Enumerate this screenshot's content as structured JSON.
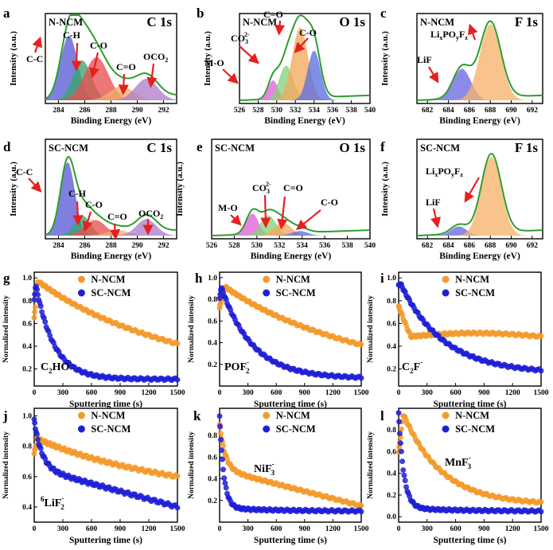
{
  "figure": {
    "colors": {
      "fit": "#2e9d2e",
      "arrow": "#e62020",
      "orange": "#f39a2c",
      "blue": "#1f1fd6",
      "CC": "#5b5bd6",
      "CH": "#3aa56d",
      "CO": "#e8504f",
      "CdO": "#f0ad6b",
      "OCO2": "#b07fc9",
      "MO": "#e35fd7",
      "CO3": "#8bd17c",
      "Odb": "#f3a95c",
      "Oco": "#5e6fe0",
      "LiF": "#6a6ae0",
      "LiPOF": "#f6b46c"
    }
  },
  "chart_data": [
    {
      "panel": "a",
      "type": "xps",
      "sample": "N-NCM",
      "element": "C 1s",
      "xlabel": "Binding Energy (eV)",
      "ylabel": "Intensity (a.u.)",
      "xlim": [
        283,
        293
      ],
      "xticks": [
        284,
        286,
        288,
        290,
        292
      ],
      "peaks": [
        {
          "name": "C-C",
          "center": 284.8,
          "height": 0.78,
          "width": 0.65,
          "color": "CC"
        },
        {
          "name": "C-H",
          "center": 285.8,
          "height": 0.48,
          "width": 0.7,
          "color": "CH"
        },
        {
          "name": "C-O",
          "center": 286.9,
          "height": 0.52,
          "width": 0.9,
          "color": "CO"
        },
        {
          "name": "C=O",
          "center": 288.8,
          "height": 0.17,
          "width": 0.9,
          "color": "CdO"
        },
        {
          "name": "OCO2",
          "center": 290.7,
          "height": 0.26,
          "width": 0.85,
          "color": "OCO2"
        }
      ],
      "annotations": [
        {
          "text": "C-C",
          "sub": ""
        },
        {
          "text": "C-H",
          "sub": ""
        },
        {
          "text": "C-O",
          "sub": ""
        },
        {
          "text": "C=O",
          "sub": ""
        },
        {
          "text": "OCO",
          "sub": "2"
        }
      ]
    },
    {
      "panel": "b",
      "type": "xps",
      "sample": "N-NCM",
      "element": "O 1s",
      "xlabel": "Binding Energy (eV)",
      "ylabel": "Intensity (a.u.)",
      "xlim": [
        526,
        540
      ],
      "xticks": [
        526,
        528,
        530,
        532,
        534,
        536,
        538,
        540
      ],
      "peaks": [
        {
          "name": "M-O",
          "center": 529.6,
          "height": 0.24,
          "width": 0.55,
          "color": "MO"
        },
        {
          "name": "CO3 2-",
          "center": 531.0,
          "height": 0.42,
          "width": 0.75,
          "color": "CO3"
        },
        {
          "name": "C=O",
          "center": 532.5,
          "height": 0.88,
          "width": 0.85,
          "color": "Odb"
        },
        {
          "name": "C-O",
          "center": 534.0,
          "height": 0.6,
          "width": 0.7,
          "color": "Oco"
        }
      ],
      "annotations": [
        {
          "text": "M-O",
          "sub": ""
        },
        {
          "text": "CO",
          "sub": "3",
          "sup": "2-"
        },
        {
          "text": "C=O",
          "sub": ""
        },
        {
          "text": "C-O",
          "sub": ""
        }
      ]
    },
    {
      "panel": "c",
      "type": "xps",
      "sample": "N-NCM",
      "element": "F 1s",
      "xlabel": "Binding Energy (eV)",
      "ylabel": "Intensity (a.u.)",
      "xlim": [
        681,
        693
      ],
      "xticks": [
        682,
        684,
        686,
        688,
        690,
        692
      ],
      "peaks": [
        {
          "name": "LiF",
          "center": 685.3,
          "height": 0.38,
          "width": 0.85,
          "color": "LiF"
        },
        {
          "name": "LixPOyFz",
          "center": 688.0,
          "height": 0.92,
          "width": 1.0,
          "color": "LiPOF"
        }
      ],
      "annotations": [
        {
          "text": "LiF",
          "sub": ""
        },
        {
          "text": "Li",
          "sub": "x",
          "mid": "PO",
          "sub2": "y",
          "tail": "F",
          "sub3": "z"
        }
      ]
    },
    {
      "panel": "d",
      "type": "xps",
      "sample": "SC-NCM",
      "element": "C 1s",
      "xlabel": "Binding Energy (eV)",
      "ylabel": "Intensity (a.u.)",
      "xlim": [
        283,
        293
      ],
      "xticks": [
        284,
        286,
        288,
        290,
        292
      ],
      "peaks": [
        {
          "name": "C-C",
          "center": 284.7,
          "height": 0.8,
          "width": 0.55,
          "color": "CC"
        },
        {
          "name": "C-H",
          "center": 285.8,
          "height": 0.22,
          "width": 0.6,
          "color": "CH"
        },
        {
          "name": "C-O",
          "center": 286.8,
          "height": 0.17,
          "width": 0.8,
          "color": "CO"
        },
        {
          "name": "C=O",
          "center": 288.5,
          "height": 0.06,
          "width": 0.8,
          "color": "CdO"
        },
        {
          "name": "OCO2",
          "center": 290.7,
          "height": 0.18,
          "width": 0.75,
          "color": "OCO2"
        }
      ],
      "annotations": [
        {
          "text": "C-C",
          "sub": ""
        },
        {
          "text": "C-H",
          "sub": ""
        },
        {
          "text": "C-O",
          "sub": ""
        },
        {
          "text": "C=O",
          "sub": ""
        },
        {
          "text": "OCO",
          "sub": "2"
        }
      ]
    },
    {
      "panel": "e",
      "type": "xps",
      "sample": "SC-NCM",
      "element": "O 1s",
      "xlabel": "Binding Energy (eV)",
      "ylabel": "Intensity (a.u.)",
      "xlim": [
        526,
        540
      ],
      "xticks": [
        526,
        528,
        530,
        532,
        534,
        536,
        538,
        540
      ],
      "peaks": [
        {
          "name": "M-O",
          "center": 529.6,
          "height": 0.24,
          "width": 0.55,
          "color": "MO"
        },
        {
          "name": "CO3 2-",
          "center": 531.0,
          "height": 0.22,
          "width": 0.7,
          "color": "CO3"
        },
        {
          "name": "C=O",
          "center": 532.3,
          "height": 0.14,
          "width": 0.75,
          "color": "Odb"
        },
        {
          "name": "C-O",
          "center": 533.8,
          "height": 0.05,
          "width": 0.7,
          "color": "Oco"
        }
      ],
      "annotations": [
        {
          "text": "M-O",
          "sub": ""
        },
        {
          "text": "CO",
          "sub": "3",
          "sup": "2-"
        },
        {
          "text": "C=O",
          "sub": ""
        },
        {
          "text": "C-O",
          "sub": ""
        }
      ]
    },
    {
      "panel": "f",
      "type": "xps",
      "sample": "SC-NCM",
      "element": "F 1s",
      "xlabel": "Binding Energy (eV)",
      "ylabel": "Intensity (a.u.)",
      "xlim": [
        681,
        693
      ],
      "xticks": [
        682,
        684,
        686,
        688,
        690,
        692
      ],
      "peaks": [
        {
          "name": "LiF",
          "center": 685.0,
          "height": 0.1,
          "width": 0.75,
          "color": "LiF"
        },
        {
          "name": "LixPOyFz",
          "center": 688.1,
          "height": 0.86,
          "width": 0.95,
          "color": "LiPOF"
        }
      ],
      "annotations": [
        {
          "text": "LiF",
          "sub": ""
        },
        {
          "text": "Li",
          "sub": "x",
          "mid": "PO",
          "sub2": "y",
          "tail": "F",
          "sub3": "z"
        }
      ]
    },
    {
      "panel": "g",
      "type": "scatter",
      "species": "C2HO-",
      "xlabel": "Sputtering time (s)",
      "ylabel": "Normalized intensity",
      "xlim": [
        0,
        1500
      ],
      "ylim": [
        0.05,
        1.05
      ],
      "xticks": [
        0,
        300,
        600,
        900,
        1200,
        1500
      ],
      "yticks": [
        0.2,
        0.4,
        0.6,
        0.8,
        1.0
      ],
      "series": [
        {
          "name": "N-NCM",
          "color": "orange",
          "model": {
            "type": "decay",
            "start": 0.65,
            "peak": 0.97,
            "peak_t": 40,
            "end": 0.42,
            "shape": "linear",
            "k": 0
          }
        },
        {
          "name": "SC-NCM",
          "color": "blue",
          "model": {
            "type": "decay",
            "start": 0.8,
            "peak": 0.95,
            "peak_t": 15,
            "end": 0.11,
            "shape": "exp",
            "k": 190
          }
        }
      ]
    },
    {
      "panel": "h",
      "type": "scatter",
      "species": "POF2-",
      "xlabel": "Sputtering time (s)",
      "ylabel": "Normalized intensity",
      "xlim": [
        0,
        1500
      ],
      "ylim": [
        0.0,
        1.05
      ],
      "xticks": [
        0,
        300,
        600,
        900,
        1200,
        1500
      ],
      "yticks": [
        0.2,
        0.4,
        0.6,
        0.8,
        1.0
      ],
      "series": [
        {
          "name": "N-NCM",
          "color": "orange",
          "model": {
            "type": "decay",
            "start": 0.72,
            "peak": 0.92,
            "peak_t": 50,
            "end": 0.38,
            "shape": "linear",
            "k": 0
          }
        },
        {
          "name": "SC-NCM",
          "color": "blue",
          "model": {
            "type": "decay",
            "start": 0.8,
            "peak": 0.92,
            "peak_t": 15,
            "end": 0.07,
            "shape": "exp",
            "k": 330
          }
        }
      ]
    },
    {
      "panel": "i",
      "type": "scatter",
      "species": "C2F-",
      "xlabel": "Sputtering time (s)",
      "ylabel": "Normalized intensity",
      "xlim": [
        0,
        1500
      ],
      "ylim": [
        0.05,
        1.05
      ],
      "xticks": [
        0,
        300,
        600,
        900,
        1200,
        1500
      ],
      "yticks": [
        0.2,
        0.4,
        0.6,
        0.8,
        1.0
      ],
      "series": [
        {
          "name": "N-NCM",
          "color": "orange",
          "model": {
            "type": "plateau",
            "start": 0.75,
            "peak": 0.62,
            "peak_t": 60,
            "end": 0.47,
            "shape": "flat",
            "k": 0
          }
        },
        {
          "name": "SC-NCM",
          "color": "blue",
          "model": {
            "type": "decay",
            "start": 0.93,
            "peak": 0.95,
            "peak_t": 20,
            "end": 0.16,
            "shape": "slow",
            "k": 450
          }
        }
      ]
    },
    {
      "panel": "j",
      "type": "scatter",
      "species": "6LiF2-",
      "xlabel": "Sputtering time (s)",
      "ylabel": "Normalized intensity",
      "xlim": [
        0,
        1500
      ],
      "ylim": [
        0.3,
        1.05
      ],
      "xticks": [
        0,
        300,
        600,
        900,
        1200,
        1500
      ],
      "yticks": [
        0.4,
        0.6,
        0.8,
        1.0
      ],
      "series": [
        {
          "name": "N-NCM",
          "color": "orange",
          "model": {
            "type": "decay",
            "start": 0.75,
            "peak": 0.85,
            "peak_t": 30,
            "end": 0.6,
            "shape": "linear",
            "k": 0
          }
        },
        {
          "name": "SC-NCM",
          "color": "blue",
          "model": {
            "type": "decay",
            "start": 0.97,
            "peak": 0.97,
            "peak_t": 0,
            "end": 0.4,
            "shape": "exp2",
            "k": 80
          }
        }
      ]
    },
    {
      "panel": "k",
      "type": "scatter",
      "species": "NiF3-",
      "xlabel": "Sputtering time (s)",
      "ylabel": "Normalized intensity",
      "xlim": [
        0,
        1500
      ],
      "ylim": [
        0.0,
        1.05
      ],
      "xticks": [
        0,
        300,
        600,
        900,
        1200,
        1500
      ],
      "yticks": [
        0.2,
        0.4,
        0.6,
        0.8
      ],
      "series": [
        {
          "name": "N-NCM",
          "color": "orange",
          "model": {
            "type": "decay",
            "start": 0.9,
            "peak": 0.9,
            "peak_t": 0,
            "end": 0.15,
            "shape": "exp2",
            "k": 60
          }
        },
        {
          "name": "SC-NCM",
          "color": "blue",
          "model": {
            "type": "decay",
            "start": 0.94,
            "peak": 0.94,
            "peak_t": 0,
            "end": 0.1,
            "shape": "fast",
            "k": 45
          }
        }
      ]
    },
    {
      "panel": "l",
      "type": "scatter",
      "species": "MnF3-",
      "xlabel": "Sputtering time (s)",
      "ylabel": "Normalized intensity",
      "xlim": [
        0,
        1500
      ],
      "ylim": [
        -0.05,
        1.0
      ],
      "xticks": [
        0,
        300,
        600,
        900,
        1200,
        1500
      ],
      "yticks": [
        0.0,
        0.2,
        0.4,
        0.6,
        0.8
      ],
      "series": [
        {
          "name": "N-NCM",
          "color": "orange",
          "model": {
            "type": "decay",
            "start": 0.6,
            "peak": 0.95,
            "peak_t": 50,
            "end": 0.11,
            "shape": "exp",
            "k": 400
          }
        },
        {
          "name": "SC-NCM",
          "color": "blue",
          "model": {
            "type": "decay",
            "start": 0.92,
            "peak": 0.92,
            "peak_t": 0,
            "end": 0.05,
            "shape": "fast",
            "k": 55
          }
        }
      ]
    }
  ]
}
